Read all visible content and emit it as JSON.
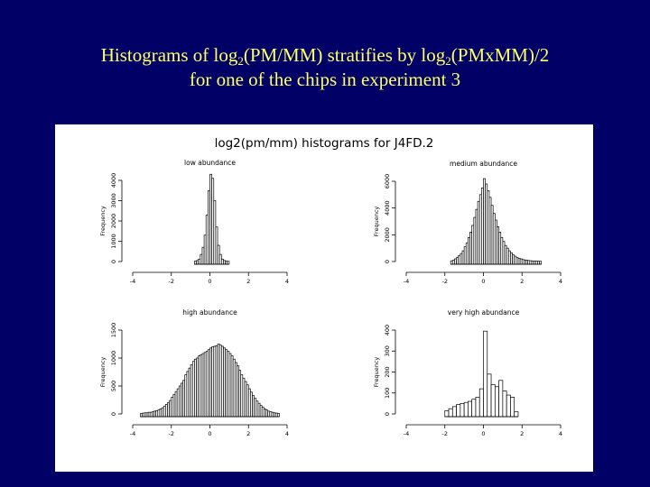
{
  "slide": {
    "title_line1_a": "Histograms of log",
    "title_line1_sub1": "2",
    "title_line1_b": "(PM/MM) stratifies by log",
    "title_line1_sub2": "2",
    "title_line1_c": "(PMxMM)/2",
    "title_line2": "for one of the chips in experiment 3",
    "background_color": "#000066",
    "title_color": "#ffff66"
  },
  "figure": {
    "main_title": "log2(pm/mm) histograms for J4FD.2",
    "ylabel": "Frequency"
  },
  "chart_data": [
    {
      "type": "bar",
      "title": "low abundance",
      "ylabel": "Frequency",
      "xlim": [
        -4,
        4
      ],
      "xticks": [
        -4,
        -2,
        0,
        2,
        4
      ],
      "ylim": [
        0,
        4000
      ],
      "yticks": [
        0,
        1000,
        2000,
        3000,
        4000
      ],
      "bin_width": 0.1,
      "bin_starts": [
        -0.8,
        -0.7,
        -0.6,
        -0.5,
        -0.4,
        -0.3,
        -0.2,
        -0.1,
        0.0,
        0.1,
        0.2,
        0.3,
        0.4,
        0.5,
        0.6,
        0.7,
        0.8,
        0.9
      ],
      "values": [
        20,
        50,
        120,
        350,
        700,
        1300,
        2300,
        3500,
        4300,
        4100,
        3000,
        1700,
        800,
        350,
        120,
        50,
        20,
        10
      ]
    },
    {
      "type": "bar",
      "title": "medium abundance",
      "ylabel": "Frequency",
      "xlim": [
        -4,
        4
      ],
      "xticks": [
        -4,
        -2,
        0,
        2,
        4
      ],
      "ylim": [
        0,
        6000
      ],
      "yticks": [
        0,
        2000,
        4000,
        6000
      ],
      "bin_width": 0.1,
      "bin_starts": [
        -1.7,
        -1.6,
        -1.5,
        -1.4,
        -1.3,
        -1.2,
        -1.1,
        -1.0,
        -0.9,
        -0.8,
        -0.7,
        -0.6,
        -0.5,
        -0.4,
        -0.3,
        -0.2,
        -0.1,
        0.0,
        0.1,
        0.2,
        0.3,
        0.4,
        0.5,
        0.6,
        0.7,
        0.8,
        0.9,
        1.0,
        1.1,
        1.2,
        1.3,
        1.4,
        1.5,
        1.6,
        1.7,
        1.8,
        1.9,
        2.0,
        2.1,
        2.2,
        2.3,
        2.4,
        2.5,
        2.6,
        2.7,
        2.8,
        2.9
      ],
      "values": [
        50,
        100,
        200,
        300,
        450,
        600,
        800,
        1100,
        1400,
        1800,
        2200,
        2700,
        3300,
        3900,
        4500,
        5000,
        5500,
        6200,
        5800,
        5300,
        4800,
        4200,
        3600,
        3100,
        2600,
        2200,
        1800,
        1500,
        1200,
        1000,
        800,
        650,
        500,
        400,
        300,
        250,
        200,
        150,
        120,
        100,
        80,
        60,
        50,
        40,
        30,
        25,
        20
      ]
    },
    {
      "type": "bar",
      "title": "high abundance",
      "ylabel": "Frequency",
      "xlim": [
        -4,
        4
      ],
      "xticks": [
        -4,
        -2,
        0,
        2,
        4
      ],
      "ylim": [
        0,
        1500
      ],
      "yticks": [
        0,
        500,
        1000,
        1500
      ],
      "bin_width": 0.1,
      "bin_starts": [
        -3.6,
        -3.5,
        -3.4,
        -3.3,
        -3.2,
        -3.1,
        -3.0,
        -2.9,
        -2.8,
        -2.7,
        -2.6,
        -2.5,
        -2.4,
        -2.3,
        -2.2,
        -2.1,
        -2.0,
        -1.9,
        -1.8,
        -1.7,
        -1.6,
        -1.5,
        -1.4,
        -1.3,
        -1.2,
        -1.1,
        -1.0,
        -0.9,
        -0.8,
        -0.7,
        -0.6,
        -0.5,
        -0.4,
        -0.3,
        -0.2,
        -0.1,
        0.0,
        0.1,
        0.2,
        0.3,
        0.4,
        0.5,
        0.6,
        0.7,
        0.8,
        0.9,
        1.0,
        1.1,
        1.2,
        1.3,
        1.4,
        1.5,
        1.6,
        1.7,
        1.8,
        1.9,
        2.0,
        2.1,
        2.2,
        2.3,
        2.4,
        2.5,
        2.6,
        2.7,
        2.8,
        2.9,
        3.0,
        3.1,
        3.2,
        3.3,
        3.4,
        3.5
      ],
      "values": [
        10,
        15,
        20,
        20,
        30,
        30,
        40,
        50,
        60,
        70,
        90,
        110,
        140,
        170,
        200,
        240,
        300,
        350,
        400,
        450,
        500,
        550,
        600,
        700,
        760,
        820,
        880,
        940,
        980,
        1000,
        1040,
        1060,
        1080,
        1100,
        1120,
        1150,
        1180,
        1200,
        1210,
        1220,
        1250,
        1230,
        1210,
        1180,
        1150,
        1120,
        1080,
        1040,
        980,
        920,
        860,
        780,
        700,
        640,
        580,
        520,
        450,
        390,
        330,
        280,
        230,
        190,
        150,
        120,
        90,
        70,
        50,
        40,
        30,
        20,
        15,
        10
      ]
    },
    {
      "type": "bar",
      "title": "very high abundance",
      "ylabel": "Frequency",
      "xlim": [
        -4,
        4
      ],
      "xticks": [
        -4,
        -2,
        0,
        2,
        4
      ],
      "ylim": [
        0,
        400
      ],
      "yticks": [
        0,
        100,
        200,
        300,
        400
      ],
      "bin_width": 0.2,
      "bin_starts": [
        -2.0,
        -1.8,
        -1.6,
        -1.4,
        -1.2,
        -1.0,
        -0.8,
        -0.6,
        -0.4,
        -0.2,
        0.0,
        0.2,
        0.4,
        0.6,
        0.8,
        1.0,
        1.2,
        1.4,
        1.6
      ],
      "values": [
        15,
        25,
        35,
        45,
        50,
        55,
        60,
        70,
        80,
        120,
        395,
        190,
        140,
        130,
        160,
        110,
        90,
        80,
        10
      ]
    }
  ]
}
